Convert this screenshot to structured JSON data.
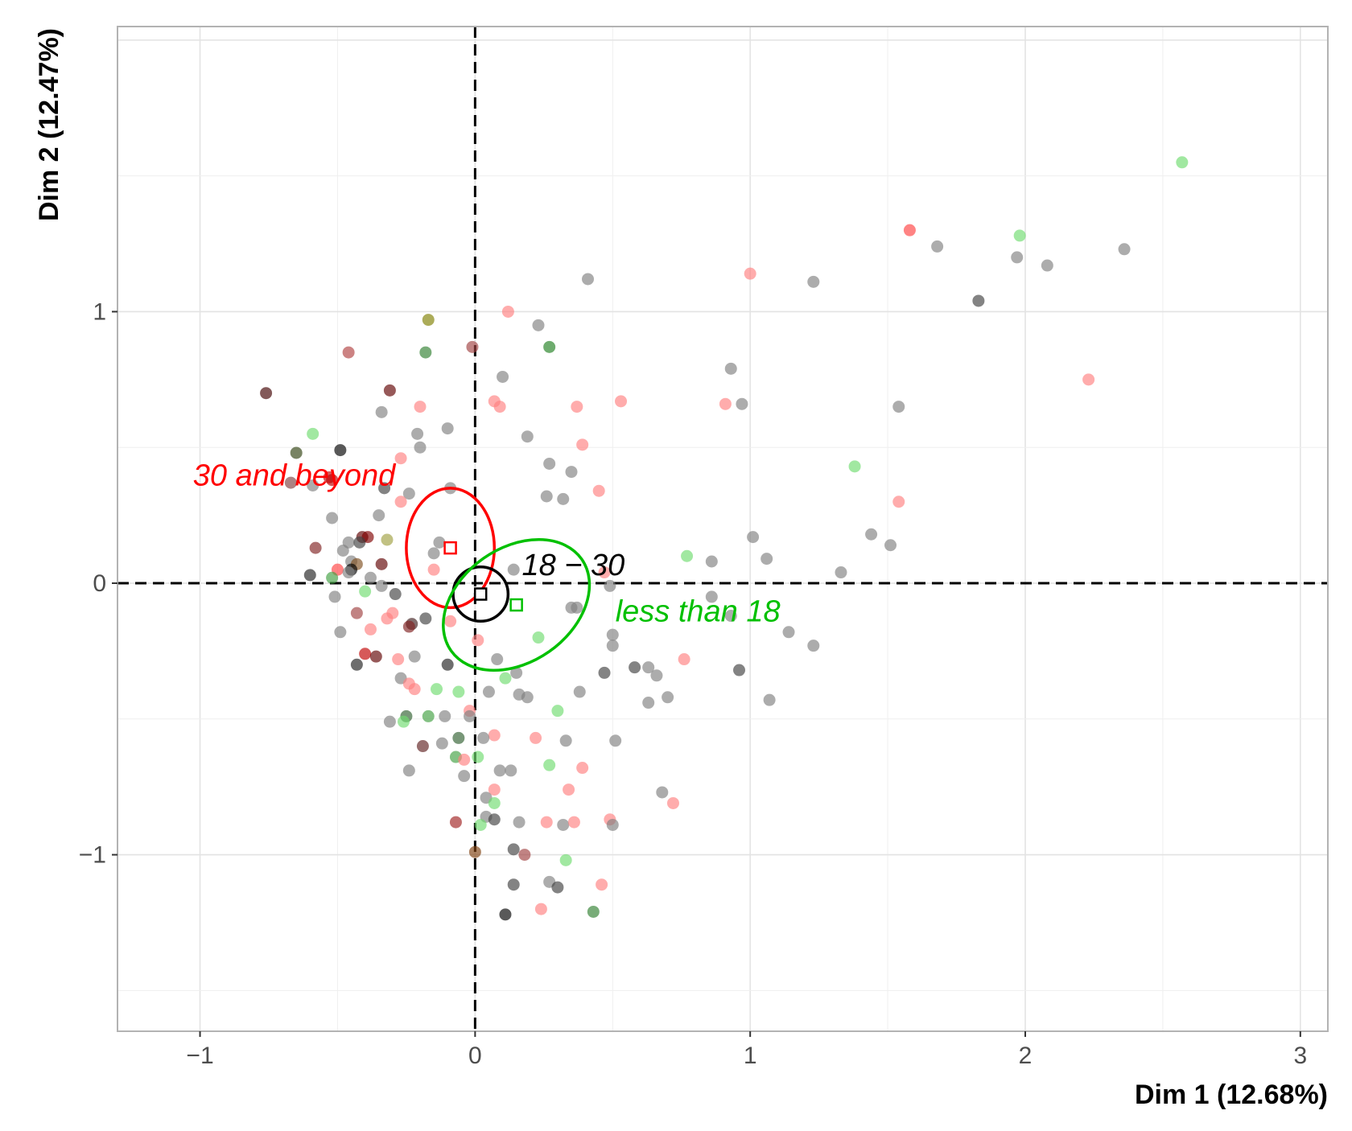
{
  "chart_data": {
    "type": "scatter",
    "title": "",
    "xlabel": "Dim 1 (12.68%)",
    "ylabel": "Dim 2 (12.47%)",
    "xlim": [
      -1.3,
      3.1
    ],
    "ylim": [
      -1.65,
      2.05
    ],
    "x_ticks": [
      -1,
      0,
      1,
      2,
      3
    ],
    "y_ticks": [
      -1,
      0,
      1
    ],
    "x_tick_labels": [
      "−1",
      "0",
      "1",
      "2",
      "3"
    ],
    "y_tick_labels": [
      "−1",
      "0",
      "1"
    ],
    "grid": true,
    "reference_lines": {
      "x": 0,
      "y": 0,
      "style": "dashed"
    },
    "colors": {
      "black": "#000000",
      "red": "#ff0000",
      "green": "#00c000",
      "grey": "#808080"
    },
    "groups": [
      {
        "label": "30 and beyond",
        "color": "#ff0000",
        "centroid": [
          -0.09,
          0.13
        ],
        "ellipse": {
          "rx": 0.16,
          "ry": 0.22,
          "angle": 0
        }
      },
      {
        "label": "18 − 30",
        "color": "#000000",
        "centroid": [
          0.02,
          -0.04
        ],
        "ellipse": {
          "rx": 0.1,
          "ry": 0.1,
          "angle": 0
        }
      },
      {
        "label": "less than 18",
        "color": "#00c000",
        "centroid": [
          0.15,
          -0.08
        ],
        "ellipse": {
          "rx": 0.29,
          "ry": 0.21,
          "angle": -35
        }
      }
    ],
    "points": [
      {
        "x": 2.57,
        "y": 1.55,
        "c": "#6fdc6f"
      },
      {
        "x": 1.58,
        "y": 1.3,
        "c": "#ff4040"
      },
      {
        "x": 1.98,
        "y": 1.28,
        "c": "#6fdc6f"
      },
      {
        "x": 1.68,
        "y": 1.24,
        "c": "#808080"
      },
      {
        "x": 2.36,
        "y": 1.23,
        "c": "#808080"
      },
      {
        "x": 1.97,
        "y": 1.2,
        "c": "#808080"
      },
      {
        "x": 2.08,
        "y": 1.17,
        "c": "#808080"
      },
      {
        "x": 1.0,
        "y": 1.14,
        "c": "#ff8080"
      },
      {
        "x": 0.41,
        "y": 1.12,
        "c": "#808080"
      },
      {
        "x": 1.23,
        "y": 1.11,
        "c": "#808080"
      },
      {
        "x": 1.83,
        "y": 1.04,
        "c": "#404040"
      },
      {
        "x": 0.12,
        "y": 1.0,
        "c": "#ff8080"
      },
      {
        "x": 0.23,
        "y": 0.95,
        "c": "#808080"
      },
      {
        "x": -0.17,
        "y": 0.97,
        "c": "#808000"
      },
      {
        "x": -0.18,
        "y": 0.85,
        "c": "#308030"
      },
      {
        "x": 0.27,
        "y": 0.87,
        "c": "#208020"
      },
      {
        "x": -0.01,
        "y": 0.87,
        "c": "#a04040"
      },
      {
        "x": -0.46,
        "y": 0.85,
        "c": "#b04040"
      },
      {
        "x": 0.93,
        "y": 0.79,
        "c": "#808080"
      },
      {
        "x": 0.1,
        "y": 0.76,
        "c": "#808080"
      },
      {
        "x": 2.23,
        "y": 0.75,
        "c": "#ff8080"
      },
      {
        "x": -0.76,
        "y": 0.7,
        "c": "#400000"
      },
      {
        "x": -0.31,
        "y": 0.71,
        "c": "#600000"
      },
      {
        "x": 0.07,
        "y": 0.67,
        "c": "#ff8080"
      },
      {
        "x": 0.09,
        "y": 0.65,
        "c": "#ff8080"
      },
      {
        "x": 0.37,
        "y": 0.65,
        "c": "#ff8080"
      },
      {
        "x": 0.53,
        "y": 0.67,
        "c": "#ff8080"
      },
      {
        "x": 0.91,
        "y": 0.66,
        "c": "#ff8080"
      },
      {
        "x": 0.97,
        "y": 0.66,
        "c": "#808080"
      },
      {
        "x": 1.54,
        "y": 0.65,
        "c": "#808080"
      },
      {
        "x": -0.2,
        "y": 0.65,
        "c": "#ff8080"
      },
      {
        "x": -0.34,
        "y": 0.63,
        "c": "#808080"
      },
      {
        "x": -0.1,
        "y": 0.57,
        "c": "#808080"
      },
      {
        "x": -0.21,
        "y": 0.55,
        "c": "#808080"
      },
      {
        "x": -0.59,
        "y": 0.55,
        "c": "#6fdc6f"
      },
      {
        "x": 0.19,
        "y": 0.54,
        "c": "#808080"
      },
      {
        "x": 0.39,
        "y": 0.51,
        "c": "#ff8080"
      },
      {
        "x": -0.2,
        "y": 0.5,
        "c": "#808080"
      },
      {
        "x": -0.49,
        "y": 0.49,
        "c": "#000000"
      },
      {
        "x": -0.65,
        "y": 0.48,
        "c": "#304010"
      },
      {
        "x": -0.27,
        "y": 0.46,
        "c": "#ff8080"
      },
      {
        "x": 0.27,
        "y": 0.44,
        "c": "#808080"
      },
      {
        "x": 0.35,
        "y": 0.41,
        "c": "#808080"
      },
      {
        "x": 1.38,
        "y": 0.43,
        "c": "#6fdc6f"
      },
      {
        "x": -0.53,
        "y": 0.39,
        "c": "#c00000"
      },
      {
        "x": -0.52,
        "y": 0.38,
        "c": "#c00000"
      },
      {
        "x": -0.67,
        "y": 0.37,
        "c": "#804040"
      },
      {
        "x": -0.59,
        "y": 0.36,
        "c": "#808080"
      },
      {
        "x": -0.09,
        "y": 0.35,
        "c": "#808080"
      },
      {
        "x": -0.33,
        "y": 0.35,
        "c": "#404040"
      },
      {
        "x": -0.24,
        "y": 0.33,
        "c": "#808080"
      },
      {
        "x": 0.45,
        "y": 0.34,
        "c": "#ff8080"
      },
      {
        "x": 0.26,
        "y": 0.32,
        "c": "#808080"
      },
      {
        "x": 0.32,
        "y": 0.31,
        "c": "#808080"
      },
      {
        "x": -0.27,
        "y": 0.3,
        "c": "#ff8080"
      },
      {
        "x": 1.54,
        "y": 0.3,
        "c": "#ff8080"
      },
      {
        "x": -0.35,
        "y": 0.25,
        "c": "#808080"
      },
      {
        "x": -0.52,
        "y": 0.24,
        "c": "#808080"
      },
      {
        "x": 1.44,
        "y": 0.18,
        "c": "#808080"
      },
      {
        "x": 1.01,
        "y": 0.17,
        "c": "#808080"
      },
      {
        "x": -0.41,
        "y": 0.17,
        "c": "#600000"
      },
      {
        "x": -0.39,
        "y": 0.17,
        "c": "#800000"
      },
      {
        "x": -0.32,
        "y": 0.16,
        "c": "#a0a040"
      },
      {
        "x": -0.46,
        "y": 0.15,
        "c": "#808080"
      },
      {
        "x": -0.42,
        "y": 0.15,
        "c": "#404040"
      },
      {
        "x": -0.13,
        "y": 0.15,
        "c": "#808080"
      },
      {
        "x": 1.51,
        "y": 0.14,
        "c": "#808080"
      },
      {
        "x": -0.58,
        "y": 0.13,
        "c": "#802020"
      },
      {
        "x": -0.48,
        "y": 0.12,
        "c": "#808080"
      },
      {
        "x": -0.15,
        "y": 0.11,
        "c": "#808080"
      },
      {
        "x": 0.77,
        "y": 0.1,
        "c": "#6fdc6f"
      },
      {
        "x": 1.06,
        "y": 0.09,
        "c": "#808080"
      },
      {
        "x": 0.86,
        "y": 0.08,
        "c": "#808080"
      },
      {
        "x": -0.45,
        "y": 0.08,
        "c": "#808080"
      },
      {
        "x": -0.43,
        "y": 0.07,
        "c": "#805020"
      },
      {
        "x": -0.34,
        "y": 0.07,
        "c": "#600000"
      },
      {
        "x": -0.5,
        "y": 0.05,
        "c": "#ff4040"
      },
      {
        "x": -0.45,
        "y": 0.05,
        "c": "#000000"
      },
      {
        "x": -0.46,
        "y": 0.04,
        "c": "#808080"
      },
      {
        "x": -0.15,
        "y": 0.05,
        "c": "#ff8080"
      },
      {
        "x": 0.14,
        "y": 0.05,
        "c": "#808080"
      },
      {
        "x": 1.33,
        "y": 0.04,
        "c": "#808080"
      },
      {
        "x": 0.47,
        "y": 0.04,
        "c": "#ff8080"
      },
      {
        "x": -0.6,
        "y": 0.03,
        "c": "#202020"
      },
      {
        "x": -0.52,
        "y": 0.02,
        "c": "#40a040"
      },
      {
        "x": -0.38,
        "y": 0.02,
        "c": "#808080"
      },
      {
        "x": -0.34,
        "y": -0.01,
        "c": "#808080"
      },
      {
        "x": 0.49,
        "y": -0.01,
        "c": "#808080"
      },
      {
        "x": -0.4,
        "y": -0.03,
        "c": "#6fdc6f"
      },
      {
        "x": -0.29,
        "y": -0.04,
        "c": "#404040"
      },
      {
        "x": -0.51,
        "y": -0.05,
        "c": "#808080"
      },
      {
        "x": 0.86,
        "y": -0.05,
        "c": "#808080"
      },
      {
        "x": 0.35,
        "y": -0.09,
        "c": "#808080"
      },
      {
        "x": 0.37,
        "y": -0.09,
        "c": "#808080"
      },
      {
        "x": -0.3,
        "y": -0.11,
        "c": "#ff8080"
      },
      {
        "x": -0.43,
        "y": -0.11,
        "c": "#a04040"
      },
      {
        "x": 0.93,
        "y": -0.12,
        "c": "#808080"
      },
      {
        "x": -0.18,
        "y": -0.13,
        "c": "#404040"
      },
      {
        "x": -0.32,
        "y": -0.13,
        "c": "#ff8080"
      },
      {
        "x": -0.09,
        "y": -0.14,
        "c": "#ff8080"
      },
      {
        "x": -0.23,
        "y": -0.15,
        "c": "#402020"
      },
      {
        "x": -0.24,
        "y": -0.16,
        "c": "#802020"
      },
      {
        "x": -0.38,
        "y": -0.17,
        "c": "#ff8080"
      },
      {
        "x": -0.49,
        "y": -0.18,
        "c": "#808080"
      },
      {
        "x": 1.14,
        "y": -0.18,
        "c": "#808080"
      },
      {
        "x": 0.5,
        "y": -0.19,
        "c": "#808080"
      },
      {
        "x": 0.23,
        "y": -0.2,
        "c": "#6fdc6f"
      },
      {
        "x": 0.01,
        "y": -0.21,
        "c": "#ff8080"
      },
      {
        "x": 0.5,
        "y": -0.23,
        "c": "#808080"
      },
      {
        "x": 1.23,
        "y": -0.23,
        "c": "#808080"
      },
      {
        "x": -0.4,
        "y": -0.26,
        "c": "#c00000"
      },
      {
        "x": -0.36,
        "y": -0.27,
        "c": "#600000"
      },
      {
        "x": -0.28,
        "y": -0.28,
        "c": "#ff8080"
      },
      {
        "x": -0.22,
        "y": -0.27,
        "c": "#808080"
      },
      {
        "x": 0.08,
        "y": -0.28,
        "c": "#808080"
      },
      {
        "x": 0.76,
        "y": -0.28,
        "c": "#ff8080"
      },
      {
        "x": -0.43,
        "y": -0.3,
        "c": "#202020"
      },
      {
        "x": -0.1,
        "y": -0.3,
        "c": "#202020"
      },
      {
        "x": 0.58,
        "y": -0.31,
        "c": "#404040"
      },
      {
        "x": 0.63,
        "y": -0.31,
        "c": "#808080"
      },
      {
        "x": 0.96,
        "y": -0.32,
        "c": "#404040"
      },
      {
        "x": 0.47,
        "y": -0.33,
        "c": "#404040"
      },
      {
        "x": 0.66,
        "y": -0.34,
        "c": "#808080"
      },
      {
        "x": 0.15,
        "y": -0.33,
        "c": "#808080"
      },
      {
        "x": 0.11,
        "y": -0.35,
        "c": "#6fdc6f"
      },
      {
        "x": -0.27,
        "y": -0.35,
        "c": "#808080"
      },
      {
        "x": -0.24,
        "y": -0.37,
        "c": "#ff8080"
      },
      {
        "x": -0.22,
        "y": -0.39,
        "c": "#ff8080"
      },
      {
        "x": -0.14,
        "y": -0.39,
        "c": "#6fdc6f"
      },
      {
        "x": -0.06,
        "y": -0.4,
        "c": "#6fdc6f"
      },
      {
        "x": 0.05,
        "y": -0.4,
        "c": "#808080"
      },
      {
        "x": 0.16,
        "y": -0.41,
        "c": "#808080"
      },
      {
        "x": 0.19,
        "y": -0.42,
        "c": "#808080"
      },
      {
        "x": 0.38,
        "y": -0.4,
        "c": "#808080"
      },
      {
        "x": 0.7,
        "y": -0.42,
        "c": "#808080"
      },
      {
        "x": 0.63,
        "y": -0.44,
        "c": "#808080"
      },
      {
        "x": 1.07,
        "y": -0.43,
        "c": "#808080"
      },
      {
        "x": -0.02,
        "y": -0.47,
        "c": "#ff8080"
      },
      {
        "x": 0.3,
        "y": -0.47,
        "c": "#6fdc6f"
      },
      {
        "x": -0.25,
        "y": -0.49,
        "c": "#306030"
      },
      {
        "x": -0.17,
        "y": -0.49,
        "c": "#40a040"
      },
      {
        "x": -0.11,
        "y": -0.49,
        "c": "#808080"
      },
      {
        "x": -0.02,
        "y": -0.49,
        "c": "#808080"
      },
      {
        "x": -0.26,
        "y": -0.51,
        "c": "#6fdc6f"
      },
      {
        "x": -0.31,
        "y": -0.51,
        "c": "#808080"
      },
      {
        "x": -0.06,
        "y": -0.57,
        "c": "#306030"
      },
      {
        "x": 0.07,
        "y": -0.56,
        "c": "#ff8080"
      },
      {
        "x": 0.03,
        "y": -0.57,
        "c": "#808080"
      },
      {
        "x": 0.22,
        "y": -0.57,
        "c": "#ff8080"
      },
      {
        "x": 0.33,
        "y": -0.58,
        "c": "#808080"
      },
      {
        "x": 0.51,
        "y": -0.58,
        "c": "#808080"
      },
      {
        "x": -0.19,
        "y": -0.6,
        "c": "#602020"
      },
      {
        "x": -0.12,
        "y": -0.59,
        "c": "#808080"
      },
      {
        "x": -0.07,
        "y": -0.64,
        "c": "#40a040"
      },
      {
        "x": -0.04,
        "y": -0.65,
        "c": "#ff8080"
      },
      {
        "x": 0.01,
        "y": -0.64,
        "c": "#6fdc6f"
      },
      {
        "x": 0.27,
        "y": -0.67,
        "c": "#6fdc6f"
      },
      {
        "x": 0.39,
        "y": -0.68,
        "c": "#ff8080"
      },
      {
        "x": -0.24,
        "y": -0.69,
        "c": "#808080"
      },
      {
        "x": 0.09,
        "y": -0.69,
        "c": "#808080"
      },
      {
        "x": 0.13,
        "y": -0.69,
        "c": "#808080"
      },
      {
        "x": -0.04,
        "y": -0.71,
        "c": "#808080"
      },
      {
        "x": 0.07,
        "y": -0.76,
        "c": "#ff8080"
      },
      {
        "x": 0.34,
        "y": -0.76,
        "c": "#ff8080"
      },
      {
        "x": 0.68,
        "y": -0.77,
        "c": "#808080"
      },
      {
        "x": 0.04,
        "y": -0.79,
        "c": "#808080"
      },
      {
        "x": 0.07,
        "y": -0.81,
        "c": "#6fdc6f"
      },
      {
        "x": 0.72,
        "y": -0.81,
        "c": "#ff8080"
      },
      {
        "x": 0.04,
        "y": -0.86,
        "c": "#808080"
      },
      {
        "x": 0.07,
        "y": -0.87,
        "c": "#404040"
      },
      {
        "x": 0.49,
        "y": -0.87,
        "c": "#ff8080"
      },
      {
        "x": -0.07,
        "y": -0.88,
        "c": "#a02020"
      },
      {
        "x": 0.16,
        "y": -0.88,
        "c": "#808080"
      },
      {
        "x": 0.26,
        "y": -0.88,
        "c": "#ff8080"
      },
      {
        "x": 0.32,
        "y": -0.89,
        "c": "#808080"
      },
      {
        "x": 0.36,
        "y": -0.88,
        "c": "#ff8080"
      },
      {
        "x": 0.5,
        "y": -0.89,
        "c": "#808080"
      },
      {
        "x": 0.02,
        "y": -0.89,
        "c": "#6fdc6f"
      },
      {
        "x": 0.14,
        "y": -0.98,
        "c": "#404040"
      },
      {
        "x": 0.18,
        "y": -1.0,
        "c": "#a04040"
      },
      {
        "x": -0.0,
        "y": -0.99,
        "c": "#804010"
      },
      {
        "x": 0.33,
        "y": -1.02,
        "c": "#6fdc6f"
      },
      {
        "x": 0.14,
        "y": -1.11,
        "c": "#404040"
      },
      {
        "x": 0.27,
        "y": -1.1,
        "c": "#808080"
      },
      {
        "x": 0.3,
        "y": -1.12,
        "c": "#404040"
      },
      {
        "x": 0.46,
        "y": -1.11,
        "c": "#ff8080"
      },
      {
        "x": 0.11,
        "y": -1.22,
        "c": "#000000"
      },
      {
        "x": 0.24,
        "y": -1.2,
        "c": "#ff8080"
      },
      {
        "x": 0.43,
        "y": -1.21,
        "c": "#308030"
      }
    ]
  }
}
